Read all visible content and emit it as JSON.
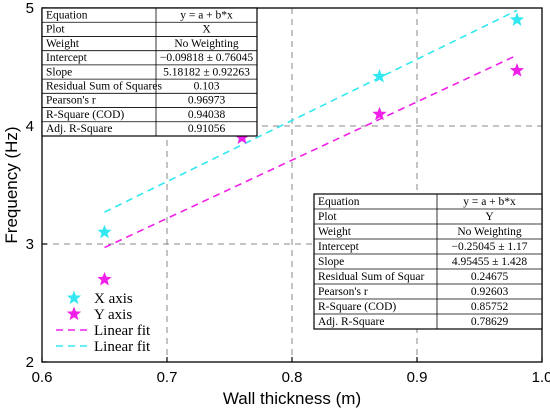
{
  "chart_data": {
    "type": "scatter",
    "xlabel": "Wall thickness (m)",
    "ylabel": "Frequency (Hz)",
    "xlim": [
      0.6,
      1.0
    ],
    "ylim": [
      2,
      5
    ],
    "xticks": [
      "0.6",
      "0.7",
      "0.8",
      "0.9",
      "1.0"
    ],
    "yticks": [
      "2",
      "3",
      "4",
      "5"
    ],
    "grid": "dashed",
    "series": [
      {
        "name": "X axis",
        "marker": "star",
        "color": "#33E8F0",
        "x": [
          0.65,
          0.76,
          0.87,
          0.98
        ],
        "y": [
          3.1,
          3.9,
          4.42,
          4.9
        ]
      },
      {
        "name": "Y axis",
        "marker": "star",
        "color": "#F020E8",
        "x": [
          0.65,
          0.76,
          0.87,
          0.98
        ],
        "y": [
          2.7,
          3.9,
          4.1,
          4.47
        ]
      }
    ],
    "fits": [
      {
        "name": "Linear fit",
        "color": "#F020E8",
        "x": [
          0.65,
          0.98
        ],
        "y": [
          2.97,
          4.6
        ]
      },
      {
        "name": "Linear fit",
        "color": "#33E8F0",
        "x": [
          0.65,
          0.98
        ],
        "y": [
          3.27,
          4.98
        ]
      }
    ],
    "legend": {
      "placement": "bottom-left",
      "entries": [
        "X axis",
        "Y axis",
        "Linear fit",
        "Linear fit"
      ]
    },
    "tables": [
      {
        "rows": [
          [
            "Equation",
            "y = a + b*x"
          ],
          [
            "Plot",
            "X"
          ],
          [
            "Weight",
            "No Weighting"
          ],
          [
            "Intercept",
            "−0.09818 ± 0.76045"
          ],
          [
            "Slope",
            "5.18182 ± 0.92263"
          ],
          [
            "Residual Sum of Squares",
            "0.103"
          ],
          [
            "Pearson's r",
            "0.96973"
          ],
          [
            "R-Square (COD)",
            "0.94038"
          ],
          [
            "Adj. R-Square",
            "0.91056"
          ]
        ]
      },
      {
        "rows": [
          [
            "Equation",
            "y = a + b*x"
          ],
          [
            "Plot",
            "Y"
          ],
          [
            "Weight",
            "No Weighting"
          ],
          [
            "Intercept",
            "−0.25045 ± 1.17"
          ],
          [
            "Slope",
            "4.95455 ± 1.428"
          ],
          [
            "Residual Sum of Squar",
            "0.24675"
          ],
          [
            "Pearson's r",
            "0.92603"
          ],
          [
            "R-Square (COD)",
            "0.85752"
          ],
          [
            "Adj. R-Square",
            "0.78629"
          ]
        ]
      }
    ]
  }
}
